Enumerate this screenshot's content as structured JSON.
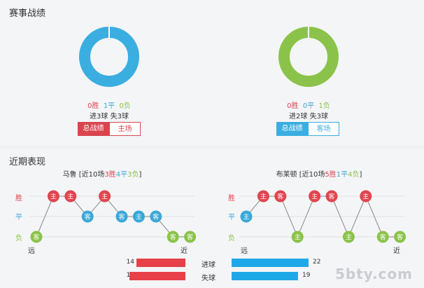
{
  "section1": {
    "title": "赛事战绩",
    "left": {
      "win": "0胜",
      "draw": "1平",
      "loss": "0负",
      "goals": "进3球  失3球",
      "tab_total": "总战绩",
      "tab_venue": "主场",
      "ring_color": "#3aaee0"
    },
    "right": {
      "win": "0胜",
      "draw": "0平",
      "loss": "1负",
      "goals": "进2球  失3球",
      "tab_total": "总战绩",
      "tab_venue": "客场",
      "ring_color": "#8bc34a"
    }
  },
  "section2": {
    "title": "近期表现",
    "result_labels": {
      "win": "胜",
      "draw": "平",
      "loss": "负"
    },
    "far": "远",
    "near": "近",
    "home_marker": "主",
    "away_marker": "客",
    "left": {
      "team": "马鲁",
      "prefix": "[近10场",
      "w": "3胜",
      "d": "4平",
      "l": "3负",
      "suffix": "]",
      "results": [
        "L",
        "W",
        "W",
        "D",
        "W",
        "D",
        "D",
        "D",
        "L",
        "L"
      ],
      "venues": [
        "A",
        "H",
        "H",
        "A",
        "H",
        "A",
        "H",
        "A",
        "A",
        "A"
      ]
    },
    "right": {
      "team": "布莱顿",
      "prefix": "[近10场",
      "w": "5胜",
      "d": "1平",
      "l": "4负",
      "suffix": "]",
      "results": [
        "D",
        "W",
        "W",
        "L",
        "W",
        "W",
        "L",
        "W",
        "L",
        "L"
      ],
      "venues": [
        "H",
        "H",
        "A",
        "H",
        "H",
        "A",
        "H",
        "H",
        "A",
        "A"
      ]
    },
    "compare": {
      "goals_for_label": "进球",
      "goals_against_label": "失球",
      "left_for": 14,
      "left_against": 16,
      "right_for": 22,
      "right_against": 19
    }
  },
  "watermark": "5bty.com"
}
